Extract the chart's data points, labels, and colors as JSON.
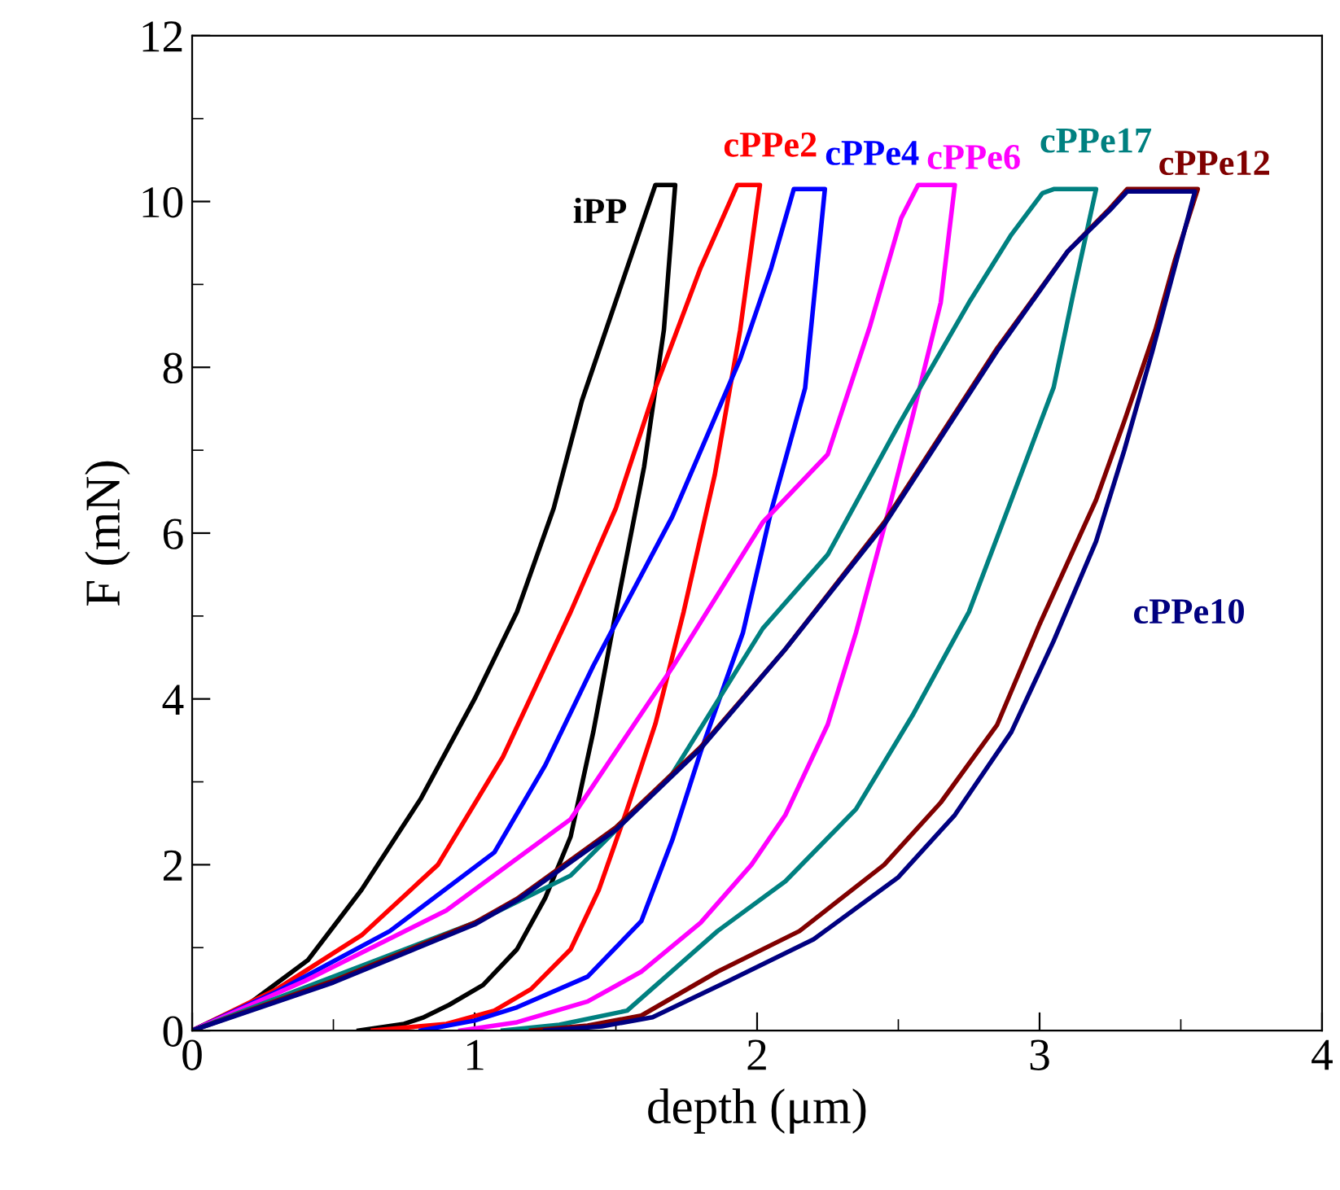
{
  "chart_data": {
    "type": "line",
    "xlabel": "depth (μm)",
    "ylabel": "F (mN)",
    "xlim": [
      0,
      4
    ],
    "ylim": [
      0,
      12
    ],
    "xticks": [
      0,
      1,
      2,
      3,
      4
    ],
    "yticks": [
      0,
      2,
      4,
      6,
      8,
      10,
      12
    ],
    "grid": false,
    "legend": false,
    "marker": "none",
    "line_style": "solid",
    "series": [
      {
        "name": "iPP",
        "color": "#000000",
        "x": [
          0,
          0.2,
          0.41,
          0.6,
          0.81,
          1.0,
          1.15,
          1.28,
          1.38,
          1.52,
          1.64,
          1.71,
          1.67,
          1.6,
          1.5,
          1.42,
          1.34,
          1.25,
          1.15,
          1.03,
          0.91,
          0.82,
          0.75,
          0.59
        ],
        "values": [
          0,
          0.32,
          0.85,
          1.7,
          2.8,
          4.0,
          5.05,
          6.3,
          7.6,
          9.0,
          10.2,
          10.2,
          8.45,
          6.8,
          5.05,
          3.6,
          2.34,
          1.6,
          0.98,
          0.55,
          0.31,
          0.16,
          0.08,
          0
        ]
      },
      {
        "name": "cPPe2",
        "color": "#ff0000",
        "x": [
          0,
          0.3,
          0.6,
          0.87,
          1.1,
          1.34,
          1.5,
          1.64,
          1.8,
          1.93,
          2.01,
          1.94,
          1.85,
          1.74,
          1.64,
          1.54,
          1.44,
          1.34,
          1.2,
          1.07,
          0.9,
          0.64
        ],
        "values": [
          0,
          0.5,
          1.15,
          2.0,
          3.3,
          5.05,
          6.3,
          7.75,
          9.2,
          10.2,
          10.2,
          8.45,
          6.7,
          5.05,
          3.7,
          2.67,
          1.7,
          0.98,
          0.5,
          0.24,
          0.08,
          0
        ]
      },
      {
        "name": "cPPe4",
        "color": "#0000ff",
        "x": [
          0,
          0.3,
          0.7,
          1.07,
          1.25,
          1.42,
          1.7,
          1.94,
          2.05,
          2.13,
          2.24,
          2.17,
          2.05,
          1.95,
          1.8,
          1.7,
          1.59,
          1.4,
          1.15,
          1.0,
          0.81
        ],
        "values": [
          0,
          0.47,
          1.2,
          2.15,
          3.2,
          4.4,
          6.2,
          8.1,
          9.2,
          10.15,
          10.15,
          7.75,
          6.27,
          4.8,
          3.36,
          2.3,
          1.32,
          0.65,
          0.28,
          0.12,
          0
        ]
      },
      {
        "name": "cPPe6",
        "color": "#ff00ff",
        "x": [
          0,
          0.4,
          0.9,
          1.34,
          1.7,
          2.02,
          2.25,
          2.4,
          2.51,
          2.57,
          2.7,
          2.65,
          2.55,
          2.45,
          2.35,
          2.25,
          2.1,
          1.98,
          1.8,
          1.59,
          1.4,
          1.15,
          0.95
        ],
        "values": [
          0,
          0.6,
          1.45,
          2.55,
          4.38,
          6.13,
          6.95,
          8.5,
          9.8,
          10.2,
          10.2,
          8.78,
          7.4,
          6.07,
          4.8,
          3.69,
          2.6,
          2.0,
          1.3,
          0.71,
          0.35,
          0.1,
          0
        ]
      },
      {
        "name": "cPPe17",
        "color": "#008080",
        "x": [
          0,
          0.5,
          1.0,
          1.34,
          1.7,
          2.02,
          2.25,
          2.5,
          2.75,
          2.9,
          3.01,
          3.05,
          3.2,
          3.12,
          3.05,
          2.9,
          2.75,
          2.55,
          2.35,
          2.1,
          1.86,
          1.54,
          1.3,
          1.1
        ],
        "values": [
          0,
          0.65,
          1.3,
          1.87,
          3.1,
          4.85,
          5.74,
          7.3,
          8.78,
          9.6,
          10.1,
          10.15,
          10.15,
          8.9,
          7.76,
          6.4,
          5.05,
          3.8,
          2.67,
          1.8,
          1.2,
          0.24,
          0.07,
          0
        ]
      },
      {
        "name": "cPPe12",
        "color": "#800000",
        "x": [
          0,
          0.5,
          1.0,
          1.15,
          1.5,
          1.8,
          2.1,
          2.45,
          2.85,
          3.1,
          3.25,
          3.31,
          3.56,
          3.48,
          3.41,
          3.3,
          3.2,
          3.0,
          2.85,
          2.65,
          2.45,
          2.15,
          1.86,
          1.59,
          1.4,
          1.2
        ],
        "values": [
          0,
          0.6,
          1.3,
          1.59,
          2.45,
          3.42,
          4.6,
          6.13,
          8.23,
          9.4,
          9.92,
          10.15,
          10.15,
          9.3,
          8.45,
          7.35,
          6.4,
          4.9,
          3.69,
          2.75,
          2.0,
          1.2,
          0.71,
          0.18,
          0.06,
          0
        ]
      },
      {
        "name": "cPPe10",
        "color": "#000080",
        "x": [
          0,
          0.5,
          1.0,
          1.15,
          1.5,
          1.8,
          2.1,
          2.45,
          2.85,
          3.1,
          3.25,
          3.31,
          3.55,
          3.47,
          3.4,
          3.3,
          3.2,
          3.05,
          2.9,
          2.7,
          2.5,
          2.2,
          1.9,
          1.63,
          1.45,
          1.25
        ],
        "values": [
          0,
          0.58,
          1.28,
          1.57,
          2.42,
          3.4,
          4.6,
          6.1,
          8.2,
          9.4,
          9.9,
          10.12,
          10.12,
          9.1,
          8.2,
          7.0,
          5.9,
          4.7,
          3.6,
          2.6,
          1.85,
          1.1,
          0.6,
          0.16,
          0.05,
          0
        ]
      }
    ]
  }
}
